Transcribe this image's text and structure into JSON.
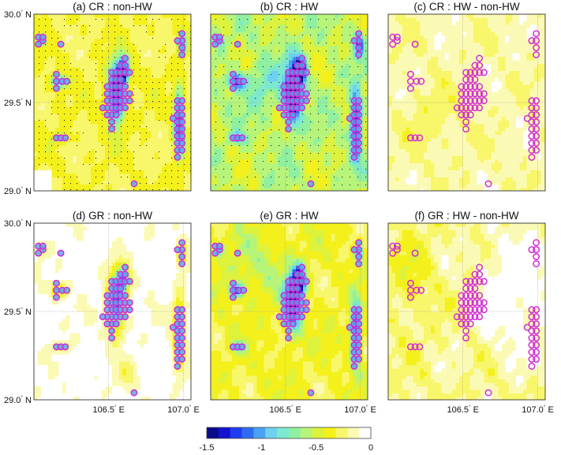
{
  "chart_data": {
    "type": "heatmap",
    "panels": [
      {
        "id": "a",
        "title": "(a) CR : non-HW",
        "pattern": "cr_nonhw",
        "stipple": "dense"
      },
      {
        "id": "b",
        "title": "(b) CR : HW",
        "pattern": "cr_hw",
        "stipple": "medium"
      },
      {
        "id": "c",
        "title": "(c) CR : HW - non-HW",
        "pattern": "diff_cr",
        "stipple": "none"
      },
      {
        "id": "d",
        "title": "(d) GR : non-HW",
        "pattern": "gr_nonhw",
        "stipple": "light"
      },
      {
        "id": "e",
        "title": "(e) GR : HW",
        "pattern": "gr_hw",
        "stipple": "none"
      },
      {
        "id": "f",
        "title": "(f) GR : HW - non-HW",
        "pattern": "diff_gr",
        "stipple": "none"
      }
    ],
    "x_ticks": [
      {
        "value": 106.5,
        "label": "106.5",
        "suffix": "E"
      },
      {
        "value": 107.0,
        "label": "107.0",
        "suffix": "E"
      }
    ],
    "y_ticks": [
      {
        "value": 30.0,
        "label": "30.0",
        "suffix": "N"
      },
      {
        "value": 29.5,
        "label": "29.5",
        "suffix": "N"
      },
      {
        "value": 29.0,
        "label": "29.0",
        "suffix": "N"
      }
    ],
    "xlim": [
      106.0,
      107.05
    ],
    "ylim": [
      29.0,
      30.0
    ],
    "colorbar": {
      "range": [
        -1.5,
        0
      ],
      "ticks": [
        {
          "value": -1.5,
          "label": "-1.5"
        },
        {
          "value": -1,
          "label": "-1"
        },
        {
          "value": -0.5,
          "label": "-0.5"
        },
        {
          "value": 0,
          "label": "0"
        }
      ],
      "colors": [
        "#0a0a8c",
        "#1212d0",
        "#1f3cf0",
        "#2f6cf2",
        "#4aa2f4",
        "#6fd0f2",
        "#7ce8cf",
        "#8ef0a0",
        "#b6f47a",
        "#dcf23c",
        "#f4f01c",
        "#f8f66a",
        "#fbfab4",
        "#ffffff"
      ]
    },
    "stations": [
      [
        106.03,
        29.87
      ],
      [
        106.03,
        29.83
      ],
      [
        106.06,
        29.85
      ],
      [
        106.06,
        29.87
      ],
      [
        106.18,
        29.83
      ],
      [
        106.15,
        29.66
      ],
      [
        106.15,
        29.62
      ],
      [
        106.15,
        29.58
      ],
      [
        106.19,
        29.62
      ],
      [
        106.22,
        29.62
      ],
      [
        106.15,
        29.3
      ],
      [
        106.18,
        29.3
      ],
      [
        106.21,
        29.3
      ],
      [
        106.52,
        29.67
      ],
      [
        106.52,
        29.63
      ],
      [
        106.52,
        29.59
      ],
      [
        106.52,
        29.55
      ],
      [
        106.52,
        29.51
      ],
      [
        106.52,
        29.47
      ],
      [
        106.52,
        29.43
      ],
      [
        106.52,
        29.39
      ],
      [
        106.49,
        29.59
      ],
      [
        106.49,
        29.55
      ],
      [
        106.49,
        29.51
      ],
      [
        106.49,
        29.47
      ],
      [
        106.49,
        29.43
      ],
      [
        106.55,
        29.67
      ],
      [
        106.55,
        29.63
      ],
      [
        106.55,
        29.59
      ],
      [
        106.55,
        29.55
      ],
      [
        106.55,
        29.51
      ],
      [
        106.55,
        29.47
      ],
      [
        106.55,
        29.43
      ],
      [
        106.58,
        29.71
      ],
      [
        106.58,
        29.67
      ],
      [
        106.58,
        29.63
      ],
      [
        106.58,
        29.59
      ],
      [
        106.58,
        29.55
      ],
      [
        106.58,
        29.51
      ],
      [
        106.58,
        29.47
      ],
      [
        106.61,
        29.75
      ],
      [
        106.61,
        29.71
      ],
      [
        106.61,
        29.67
      ],
      [
        106.61,
        29.59
      ],
      [
        106.61,
        29.55
      ],
      [
        106.61,
        29.51
      ],
      [
        106.61,
        29.47
      ],
      [
        106.64,
        29.67
      ],
      [
        106.64,
        29.55
      ],
      [
        106.64,
        29.51
      ],
      [
        106.52,
        29.35
      ],
      [
        106.46,
        29.47
      ],
      [
        106.67,
        29.04
      ],
      [
        106.93,
        29.41
      ],
      [
        106.96,
        29.51
      ],
      [
        106.96,
        29.47
      ],
      [
        106.96,
        29.43
      ],
      [
        106.96,
        29.39
      ],
      [
        106.96,
        29.35
      ],
      [
        106.96,
        29.31
      ],
      [
        106.96,
        29.27
      ],
      [
        106.96,
        29.23
      ],
      [
        106.96,
        29.19
      ],
      [
        106.99,
        29.51
      ],
      [
        106.99,
        29.47
      ],
      [
        106.99,
        29.43
      ],
      [
        106.99,
        29.39
      ],
      [
        106.99,
        29.35
      ],
      [
        106.99,
        29.31
      ],
      [
        106.99,
        29.27
      ],
      [
        106.99,
        29.23
      ],
      [
        106.99,
        29.89
      ],
      [
        106.99,
        29.85
      ],
      [
        106.99,
        29.81
      ],
      [
        106.99,
        29.77
      ],
      [
        106.96,
        29.85
      ]
    ]
  }
}
